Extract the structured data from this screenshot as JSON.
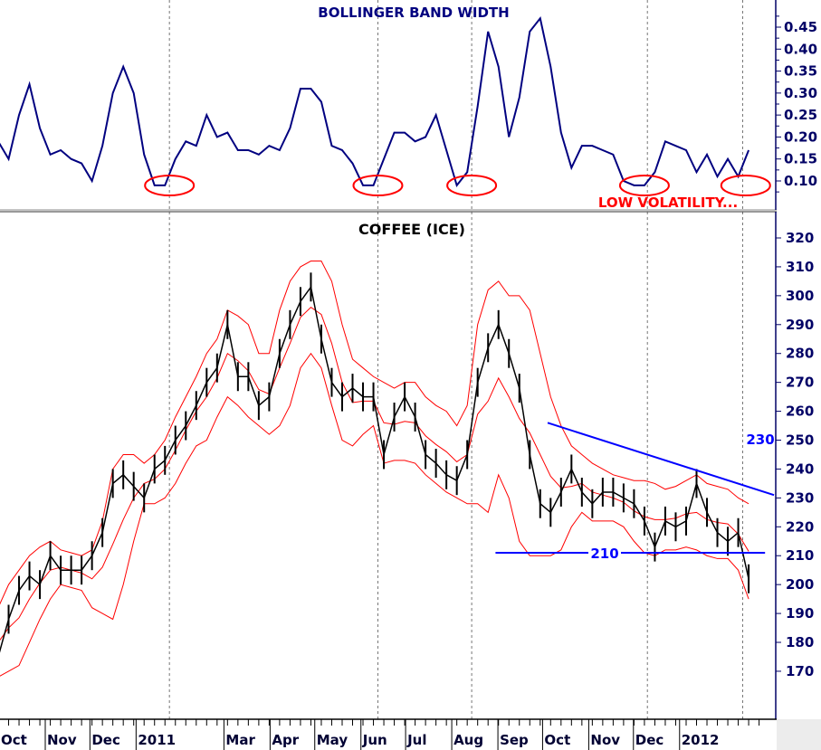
{
  "chart_data": [
    {
      "type": "line",
      "title": "BOLLINGER BAND WIDTH",
      "ylim": [
        0.03,
        0.49
      ],
      "y_ticks": [
        0.1,
        0.15,
        0.2,
        0.25,
        0.3,
        0.35,
        0.4,
        0.45
      ],
      "y_axis": "right",
      "grid": false,
      "colors": {
        "line": "#000080",
        "title": "#000080",
        "annotation": "#ff0000"
      },
      "annotation_text": "LOW VOLATILITY...",
      "low_volatility_circles": [
        "2011-01-24",
        "2011-06-13",
        "2011-08-15",
        "2011-12-09",
        "2012-02-15"
      ],
      "values": [
        0.19,
        0.15,
        0.25,
        0.32,
        0.22,
        0.16,
        0.17,
        0.15,
        0.14,
        0.1,
        0.18,
        0.3,
        0.36,
        0.3,
        0.16,
        0.09,
        0.09,
        0.15,
        0.19,
        0.18,
        0.25,
        0.2,
        0.21,
        0.17,
        0.17,
        0.16,
        0.18,
        0.17,
        0.22,
        0.31,
        0.31,
        0.28,
        0.18,
        0.17,
        0.14,
        0.09,
        0.09,
        0.15,
        0.21,
        0.21,
        0.19,
        0.2,
        0.25,
        0.17,
        0.09,
        0.12,
        0.27,
        0.44,
        0.36,
        0.2,
        0.29,
        0.44,
        0.47,
        0.36,
        0.21,
        0.13,
        0.18,
        0.18,
        0.17,
        0.16,
        0.1,
        0.09,
        0.09,
        0.12,
        0.19,
        0.18,
        0.17,
        0.12,
        0.16,
        0.11,
        0.15,
        0.11,
        0.17
      ]
    },
    {
      "type": "line",
      "title": "COFFEE (ICE)",
      "ylim": [
        158,
        328
      ],
      "y_ticks": [
        170,
        180,
        190,
        200,
        210,
        220,
        230,
        240,
        250,
        260,
        270,
        280,
        290,
        300,
        310,
        320
      ],
      "y_axis": "right",
      "grid": false,
      "colors": {
        "price": "#000000",
        "bands": "#ff0000",
        "levels": "#0000ff"
      },
      "dates": [
        "2010-10-01",
        "2010-10-08",
        "2010-10-15",
        "2010-10-22",
        "2010-10-29",
        "2010-11-05",
        "2010-11-12",
        "2010-11-19",
        "2010-11-26",
        "2010-12-03",
        "2010-12-10",
        "2010-12-17",
        "2010-12-24",
        "2010-12-31",
        "2011-01-07",
        "2011-01-14",
        "2011-01-21",
        "2011-01-28",
        "2011-02-04",
        "2011-02-11",
        "2011-02-18",
        "2011-02-25",
        "2011-03-04",
        "2011-03-11",
        "2011-03-18",
        "2011-03-25",
        "2011-04-01",
        "2011-04-08",
        "2011-04-15",
        "2011-04-22",
        "2011-04-29",
        "2011-05-06",
        "2011-05-13",
        "2011-05-20",
        "2011-05-27",
        "2011-06-03",
        "2011-06-10",
        "2011-06-17",
        "2011-06-24",
        "2011-07-01",
        "2011-07-08",
        "2011-07-15",
        "2011-07-22",
        "2011-07-29",
        "2011-08-05",
        "2011-08-12",
        "2011-08-19",
        "2011-08-26",
        "2011-09-02",
        "2011-09-09",
        "2011-09-16",
        "2011-09-23",
        "2011-09-30",
        "2011-10-07",
        "2011-10-14",
        "2011-10-21",
        "2011-10-28",
        "2011-11-04",
        "2011-11-11",
        "2011-11-18",
        "2011-11-25",
        "2011-12-02",
        "2011-12-09",
        "2011-12-16",
        "2011-12-23",
        "2011-12-30",
        "2012-01-06",
        "2012-01-13",
        "2012-01-20",
        "2012-01-27",
        "2012-02-03",
        "2012-02-10",
        "2012-02-17"
      ],
      "price": [
        175,
        188,
        198,
        203,
        200,
        210,
        205,
        205,
        205,
        210,
        218,
        235,
        238,
        234,
        230,
        240,
        243,
        250,
        255,
        262,
        270,
        275,
        290,
        272,
        272,
        262,
        265,
        280,
        290,
        298,
        303,
        285,
        270,
        265,
        268,
        265,
        265,
        245,
        258,
        265,
        258,
        245,
        242,
        238,
        236,
        245,
        270,
        282,
        290,
        280,
        268,
        245,
        228,
        225,
        232,
        240,
        232,
        228,
        232,
        232,
        230,
        228,
        222,
        213,
        222,
        220,
        222,
        235,
        225,
        218,
        215,
        218,
        202
      ],
      "upper_band": [
        192,
        200,
        205,
        210,
        213,
        215,
        212,
        211,
        210,
        212,
        222,
        240,
        245,
        245,
        242,
        245,
        250,
        258,
        265,
        272,
        280,
        285,
        295,
        293,
        290,
        280,
        280,
        295,
        305,
        310,
        312,
        312,
        305,
        290,
        278,
        275,
        272,
        270,
        268,
        270,
        270,
        265,
        262,
        260,
        255,
        262,
        290,
        302,
        305,
        300,
        300,
        295,
        280,
        265,
        255,
        248,
        245,
        242,
        240,
        238,
        237,
        236,
        236,
        235,
        233,
        234,
        236,
        238,
        235,
        234,
        233,
        230,
        228
      ],
      "lower_band": [
        168,
        170,
        172,
        180,
        188,
        195,
        200,
        199,
        198,
        192,
        190,
        188,
        200,
        215,
        228,
        228,
        230,
        235,
        242,
        248,
        250,
        258,
        265,
        262,
        258,
        255,
        252,
        255,
        262,
        275,
        280,
        275,
        262,
        250,
        248,
        252,
        255,
        242,
        243,
        243,
        242,
        238,
        235,
        232,
        230,
        228,
        228,
        225,
        238,
        230,
        215,
        210,
        210,
        210,
        212,
        220,
        225,
        222,
        222,
        222,
        220,
        215,
        211,
        210,
        212,
        212,
        213,
        212,
        210,
        209,
        209,
        205,
        195
      ],
      "x_ticks": [
        {
          "date": "2010-10-01",
          "label": "Oct"
        },
        {
          "date": "2010-11-01",
          "label": "Nov"
        },
        {
          "date": "2010-12-01",
          "label": "Dec"
        },
        {
          "date": "2011-01-01",
          "label": "2011"
        },
        {
          "date": "2011-03-01",
          "label": "Mar"
        },
        {
          "date": "2011-04-01",
          "label": "Apr"
        },
        {
          "date": "2011-05-01",
          "label": "May"
        },
        {
          "date": "2011-06-01",
          "label": "Jun"
        },
        {
          "date": "2011-07-01",
          "label": "Jul"
        },
        {
          "date": "2011-08-01",
          "label": "Aug"
        },
        {
          "date": "2011-09-01",
          "label": "Sep"
        },
        {
          "date": "2011-10-01",
          "label": "Oct"
        },
        {
          "date": "2011-11-01",
          "label": "Nov"
        },
        {
          "date": "2011-12-01",
          "label": "Dec"
        },
        {
          "date": "2012-01-01",
          "label": "2012"
        }
      ],
      "vertical_markers": [
        "2011-01-24",
        "2011-06-13",
        "2011-08-15",
        "2011-12-11",
        "2012-02-13"
      ],
      "support_line": {
        "value": 211,
        "label": "210",
        "from": "2011-08-31",
        "to": "2012-02-28"
      },
      "resistance_trendline": {
        "label": "230",
        "from": {
          "date": "2011-10-05",
          "value": 256
        },
        "to": {
          "date": "2012-03-05",
          "value": 231
        }
      }
    }
  ]
}
